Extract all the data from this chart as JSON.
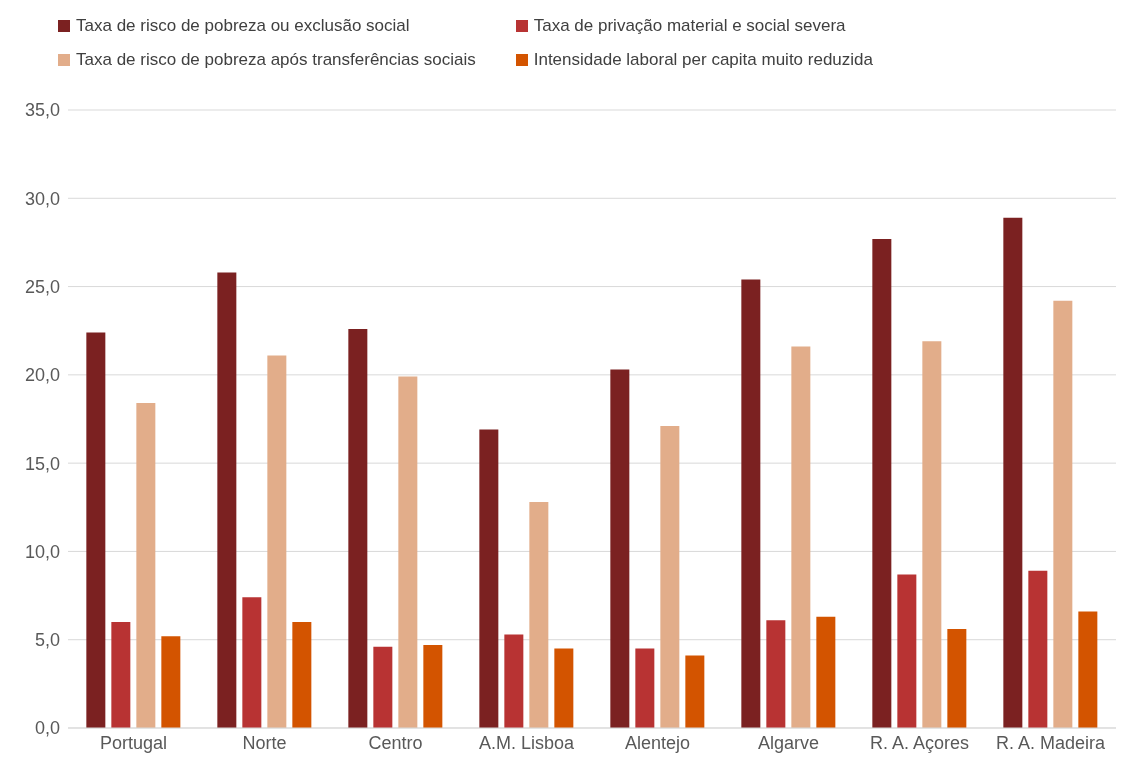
{
  "chart_data": {
    "type": "bar",
    "categories": [
      "Portugal",
      "Norte",
      "Centro",
      "A.M. Lisboa",
      "Alentejo",
      "Algarve",
      "R. A. Açores",
      "R. A. Madeira"
    ],
    "series": [
      {
        "name": "Taxa de risco de pobreza ou exclusão social",
        "color": "#7b2121",
        "values": [
          22.4,
          25.8,
          22.6,
          16.9,
          20.3,
          25.4,
          27.7,
          28.9
        ]
      },
      {
        "name": "Taxa de privação material e social severa",
        "color": "#b83333",
        "values": [
          6.0,
          7.4,
          4.6,
          5.3,
          4.5,
          6.1,
          8.7,
          8.9
        ]
      },
      {
        "name": "Taxa de risco de pobreza após transferências sociais",
        "color": "#e2ad8a",
        "values": [
          18.4,
          21.1,
          19.9,
          12.8,
          17.1,
          21.6,
          21.9,
          24.2
        ]
      },
      {
        "name": "Intensidade laboral per capita muito reduzida",
        "color": "#d35400",
        "values": [
          5.2,
          6.0,
          4.7,
          4.5,
          4.1,
          6.3,
          5.6,
          6.6
        ]
      }
    ],
    "ylim": [
      0,
      35
    ],
    "yticks": [
      {
        "value": 0,
        "label": "0,0"
      },
      {
        "value": 5,
        "label": "5,0"
      },
      {
        "value": 10,
        "label": "10,0"
      },
      {
        "value": 15,
        "label": "15,0"
      },
      {
        "value": 20,
        "label": "20,0"
      },
      {
        "value": 25,
        "label": "25,0"
      },
      {
        "value": 30,
        "label": "30,0"
      },
      {
        "value": 35,
        "label": "35,0"
      }
    ],
    "grid": "y",
    "legend": "top"
  }
}
